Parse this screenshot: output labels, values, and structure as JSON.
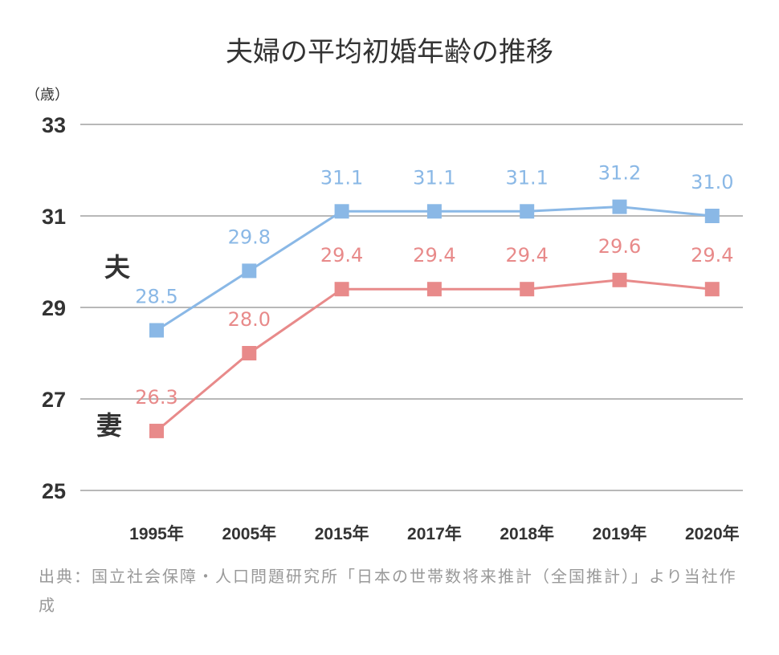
{
  "chart_data": {
    "type": "line",
    "title": "夫婦の平均初婚年齢の推移",
    "ylabel": "（歳）",
    "ylim": [
      25,
      33
    ],
    "yticks": [
      "25",
      "27",
      "29",
      "31",
      "33"
    ],
    "categories": [
      "1995年",
      "2005年",
      "2015年",
      "2017年",
      "2018年",
      "2019年",
      "2020年"
    ],
    "grid": true,
    "series": [
      {
        "name": "夫",
        "color": "#8ab8e6",
        "values": [
          28.5,
          29.8,
          31.1,
          31.1,
          31.1,
          31.2,
          31.0
        ],
        "labels": [
          "28.5",
          "29.8",
          "31.1",
          "31.1",
          "31.1",
          "31.2",
          "31.0"
        ]
      },
      {
        "name": "妻",
        "color": "#e88a8a",
        "values": [
          26.3,
          28.0,
          29.4,
          29.4,
          29.4,
          29.6,
          29.4
        ],
        "labels": [
          "26.3",
          "28.0",
          "29.4",
          "29.4",
          "29.4",
          "29.6",
          "29.4"
        ]
      }
    ]
  },
  "source": "出典：国立社会保障・人口問題研究所「日本の世帯数将来推計（全国推計）」より当社作成"
}
